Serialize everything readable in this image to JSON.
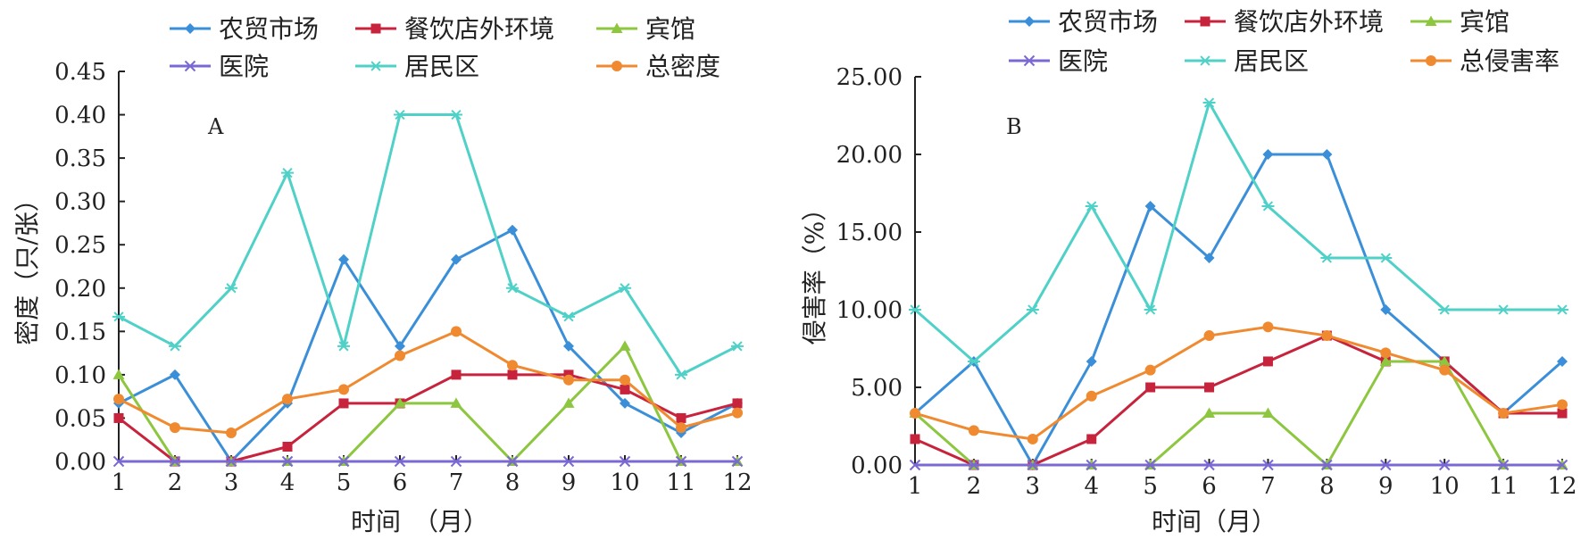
{
  "chart_data": [
    {
      "type": "line",
      "panel_label": "A",
      "ylabel": "密度（只/张）",
      "xlabel": "时间　（月）",
      "ylim": [
        0,
        0.45
      ],
      "yticks": [
        "0.00",
        "0.05",
        "0.10",
        "0.15",
        "0.20",
        "0.25",
        "0.30",
        "0.35",
        "0.40",
        "0.45"
      ],
      "x": [
        1,
        2,
        3,
        4,
        5,
        6,
        7,
        8,
        9,
        10,
        11,
        12
      ],
      "legend_position": "top",
      "series": [
        {
          "name": "农贸市场",
          "color": "#3a8fd8",
          "marker": "diamond",
          "values": [
            0.067,
            0.1,
            0.0,
            0.067,
            0.233,
            0.133,
            0.233,
            0.267,
            0.133,
            0.067,
            0.033,
            0.067
          ]
        },
        {
          "name": "餐饮店外环境",
          "color": "#c8233c",
          "marker": "square",
          "values": [
            0.05,
            0.0,
            0.0,
            0.017,
            0.067,
            0.067,
            0.1,
            0.1,
            0.1,
            0.083,
            0.05,
            0.067
          ]
        },
        {
          "name": "宾馆",
          "color": "#8dc63f",
          "marker": "triangle",
          "values": [
            0.1,
            0.0,
            0.0,
            0.0,
            0.0,
            0.067,
            0.067,
            0.0,
            0.067,
            0.133,
            0.0,
            0.0
          ]
        },
        {
          "name": "医院",
          "color": "#7b68d4",
          "marker": "x",
          "values": [
            0,
            0,
            0,
            0,
            0,
            0,
            0,
            0,
            0,
            0,
            0,
            0
          ]
        },
        {
          "name": "居民区",
          "color": "#4fd1c7",
          "marker": "star",
          "values": [
            0.167,
            0.133,
            0.2,
            0.333,
            0.133,
            0.4,
            0.4,
            0.2,
            0.167,
            0.2,
            0.1,
            0.133
          ]
        },
        {
          "name": "总密度",
          "color": "#f08a30",
          "marker": "circle",
          "values": [
            0.072,
            0.039,
            0.033,
            0.072,
            0.083,
            0.122,
            0.15,
            0.111,
            0.094,
            0.094,
            0.039,
            0.056
          ]
        }
      ]
    },
    {
      "type": "line",
      "panel_label": "B",
      "ylabel": "侵害率（%）",
      "xlabel": "时间（月）",
      "ylim": [
        0,
        25
      ],
      "yticks": [
        "0.00",
        "5.00",
        "10.00",
        "15.00",
        "20.00",
        "25.00"
      ],
      "x": [
        1,
        2,
        3,
        4,
        5,
        6,
        7,
        8,
        9,
        10,
        11,
        12
      ],
      "legend_position": "top",
      "series": [
        {
          "name": "农贸市场",
          "color": "#3a8fd8",
          "marker": "diamond",
          "values": [
            3.33,
            6.67,
            0.0,
            6.67,
            16.67,
            13.33,
            20.0,
            20.0,
            10.0,
            6.67,
            3.33,
            6.67
          ]
        },
        {
          "name": "餐饮店外环境",
          "color": "#c8233c",
          "marker": "square",
          "values": [
            1.67,
            0.0,
            0.0,
            1.67,
            5.0,
            5.0,
            6.67,
            8.33,
            6.67,
            6.67,
            3.33,
            3.33
          ]
        },
        {
          "name": "宾馆",
          "color": "#8dc63f",
          "marker": "triangle",
          "values": [
            3.33,
            0.0,
            0.0,
            0.0,
            0.0,
            3.33,
            3.33,
            0.0,
            6.67,
            6.67,
            0.0,
            0.0
          ]
        },
        {
          "name": "医院",
          "color": "#7b68d4",
          "marker": "x",
          "values": [
            0,
            0,
            0,
            0,
            0,
            0,
            0,
            0,
            0,
            0,
            0,
            0
          ]
        },
        {
          "name": "居民区",
          "color": "#4fd1c7",
          "marker": "star",
          "values": [
            10.0,
            6.67,
            10.0,
            16.67,
            10.0,
            23.33,
            16.67,
            13.33,
            13.33,
            10.0,
            10.0,
            10.0
          ]
        },
        {
          "name": "总侵害率",
          "color": "#f08a30",
          "marker": "circle",
          "values": [
            3.33,
            2.22,
            1.67,
            4.44,
            6.11,
            8.33,
            8.89,
            8.33,
            7.22,
            6.11,
            3.33,
            3.89
          ]
        }
      ]
    }
  ]
}
